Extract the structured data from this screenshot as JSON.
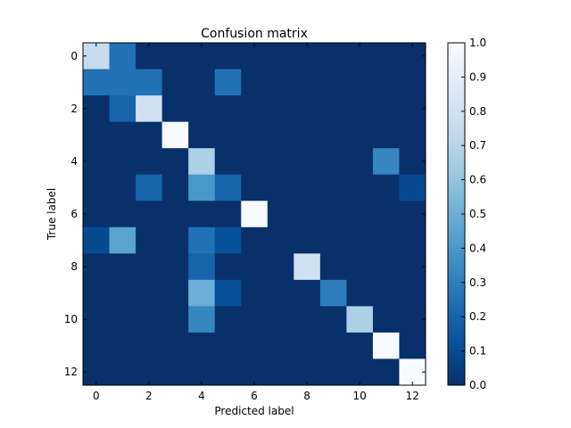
{
  "chart_data": {
    "type": "heatmap",
    "title": "Confusion matrix",
    "xlabel": "Predicted label",
    "ylabel": "True label",
    "x_ticks": [
      0,
      2,
      4,
      6,
      8,
      10,
      12
    ],
    "y_ticks": [
      0,
      2,
      4,
      6,
      8,
      10,
      12
    ],
    "rows": 13,
    "cols": 13,
    "colormap": "Blues_r",
    "colorbar": {
      "min": 0.0,
      "max": 1.0,
      "tick_values": [
        0.0,
        0.1,
        0.2,
        0.3,
        0.4,
        0.5,
        0.6,
        0.7,
        0.8,
        0.9,
        1.0
      ],
      "tick_labels": [
        "0.0",
        "0.1",
        "0.2",
        "0.3",
        "0.4",
        "0.5",
        "0.6",
        "0.7",
        "0.8",
        "0.9",
        "1.0"
      ]
    },
    "matrix": [
      [
        0.75,
        0.25,
        0,
        0,
        0,
        0,
        0,
        0,
        0,
        0,
        0,
        0,
        0
      ],
      [
        0.25,
        0.25,
        0.25,
        0,
        0,
        0.25,
        0,
        0,
        0,
        0,
        0,
        0,
        0
      ],
      [
        0,
        0.2,
        0.8,
        0,
        0,
        0,
        0,
        0,
        0,
        0,
        0,
        0,
        0
      ],
      [
        0,
        0,
        0,
        1.0,
        0,
        0,
        0,
        0,
        0,
        0,
        0,
        0,
        0
      ],
      [
        0,
        0,
        0,
        0,
        0.67,
        0,
        0,
        0,
        0,
        0,
        0,
        0.33,
        0
      ],
      [
        0,
        0,
        0.2,
        0,
        0.4,
        0.2,
        0,
        0,
        0,
        0,
        0,
        0,
        0.1
      ],
      [
        0,
        0,
        0,
        0,
        0,
        0,
        1.0,
        0,
        0,
        0,
        0,
        0,
        0
      ],
      [
        0.1,
        0.45,
        0,
        0,
        0.25,
        0.12,
        0,
        0,
        0,
        0,
        0,
        0,
        0
      ],
      [
        0,
        0,
        0,
        0,
        0.2,
        0,
        0,
        0,
        0.8,
        0,
        0,
        0,
        0
      ],
      [
        0,
        0,
        0,
        0,
        0.5,
        0.12,
        0,
        0,
        0,
        0.3,
        0,
        0,
        0
      ],
      [
        0,
        0,
        0,
        0,
        0.33,
        0,
        0,
        0,
        0,
        0,
        0.67,
        0,
        0
      ],
      [
        0,
        0,
        0,
        0,
        0,
        0,
        0,
        0,
        0,
        0,
        0,
        1.0,
        0
      ],
      [
        0,
        0,
        0,
        0,
        0,
        0,
        0,
        0,
        0,
        0,
        0,
        0,
        1.0
      ]
    ]
  }
}
